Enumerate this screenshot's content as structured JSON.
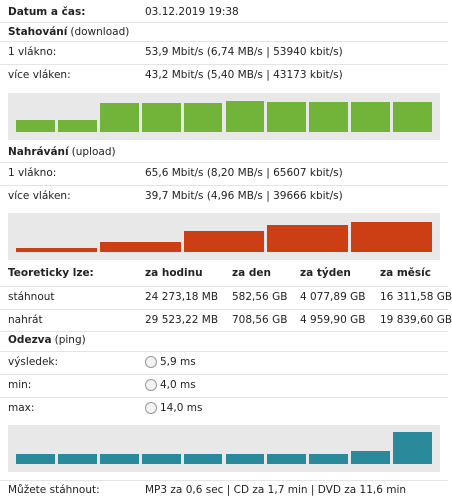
{
  "date": {
    "label": "Datum a čas:",
    "value": "03.12.2019 19:38"
  },
  "download": {
    "title": "Stahování",
    "subtitle": "(download)",
    "rows": [
      [
        "1 vlákno:",
        "53,9 Mbit/s (6,74 MB/s | 53940 kbit/s)"
      ],
      [
        "více vláken:",
        "43,2 Mbit/s (5,40 MB/s | 43173 kbit/s)"
      ]
    ],
    "graph": {
      "color": "#72b43a",
      "values": [
        30,
        30,
        75,
        75,
        75,
        80,
        78,
        76,
        76,
        78
      ]
    }
  },
  "upload": {
    "title": "Nahrávání",
    "subtitle": "(upload)",
    "rows": [
      [
        "1 vlákno:",
        "65,6 Mbit/s (8,20 MB/s | 65607 kbit/s)"
      ],
      [
        "více vláken:",
        "39,7 Mbit/s (4,96 MB/s | 39666 kbit/s)"
      ]
    ],
    "graph": {
      "color": "#cc3f15",
      "values": [
        10,
        25,
        55,
        68,
        76
      ]
    }
  },
  "potential": {
    "header": [
      "Teoreticky lze:",
      "za hodinu",
      "za den",
      "za týden",
      "za měsíc"
    ],
    "rows": [
      [
        "stáhnout",
        "24 273,18 MB",
        "582,56 GB",
        "4 077,89 GB",
        "16 311,58 GB"
      ],
      [
        "nahrát",
        "29 523,22 MB",
        "708,56 GB",
        "4 959,90 GB",
        "19 839,60 GB"
      ]
    ]
  },
  "ping": {
    "title": "Odezva",
    "subtitle": "(ping)",
    "rows": [
      [
        "výsledek:",
        "5,9 ms"
      ],
      [
        "min:",
        "4,0 ms"
      ],
      [
        "max:",
        "14,0 ms"
      ]
    ],
    "graph": {
      "color": "#2a8a9b",
      "values": [
        25,
        25,
        25,
        25,
        25,
        25,
        25,
        25,
        34,
        82
      ]
    }
  },
  "footer": {
    "label": "Můžete stáhnout:",
    "value": "MP3 za 0,6 sec | CD za 1,7 min | DVD za 11,6 min"
  }
}
